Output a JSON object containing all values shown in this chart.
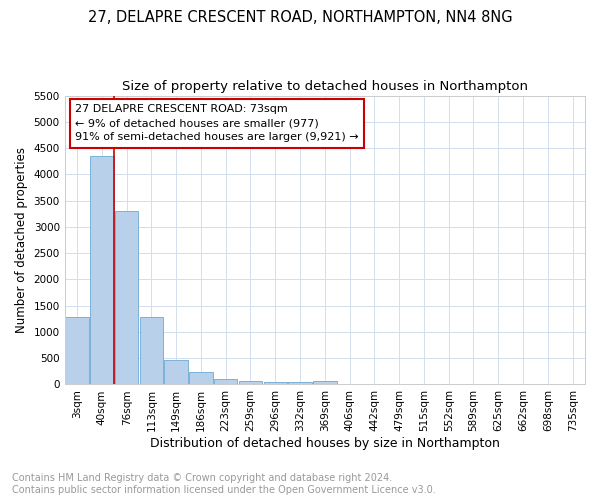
{
  "title": "27, DELAPRE CRESCENT ROAD, NORTHAMPTON, NN4 8NG",
  "subtitle": "Size of property relative to detached houses in Northampton",
  "xlabel": "Distribution of detached houses by size in Northampton",
  "ylabel": "Number of detached properties",
  "footer": "Contains HM Land Registry data © Crown copyright and database right 2024.\nContains public sector information licensed under the Open Government Licence v3.0.",
  "bar_labels": [
    "3sqm",
    "40sqm",
    "76sqm",
    "113sqm",
    "149sqm",
    "186sqm",
    "223sqm",
    "259sqm",
    "296sqm",
    "332sqm",
    "369sqm",
    "406sqm",
    "442sqm",
    "479sqm",
    "515sqm",
    "552sqm",
    "589sqm",
    "625sqm",
    "662sqm",
    "698sqm",
    "735sqm"
  ],
  "bar_values": [
    1275,
    4350,
    3300,
    1275,
    475,
    230,
    100,
    70,
    50,
    40,
    60,
    0,
    0,
    0,
    0,
    0,
    0,
    0,
    0,
    0,
    0
  ],
  "bar_color": "#b8d0ea",
  "bar_edge_color": "#6aaad4",
  "annotation_box_text": "27 DELAPRE CRESCENT ROAD: 73sqm\n← 9% of detached houses are smaller (977)\n91% of semi-detached houses are larger (9,921) →",
  "annotation_box_color": "#ffffff",
  "annotation_box_edge_color": "#cc0000",
  "vline_x_index": 2,
  "vline_color": "#cc0000",
  "ylim": [
    0,
    5500
  ],
  "yticks": [
    0,
    500,
    1000,
    1500,
    2000,
    2500,
    3000,
    3500,
    4000,
    4500,
    5000,
    5500
  ],
  "title_fontsize": 10.5,
  "subtitle_fontsize": 9.5,
  "xlabel_fontsize": 9,
  "ylabel_fontsize": 8.5,
  "tick_fontsize": 7.5,
  "annotation_fontsize": 8,
  "footer_fontsize": 7,
  "background_color": "#ffffff",
  "grid_color": "#d4dded"
}
